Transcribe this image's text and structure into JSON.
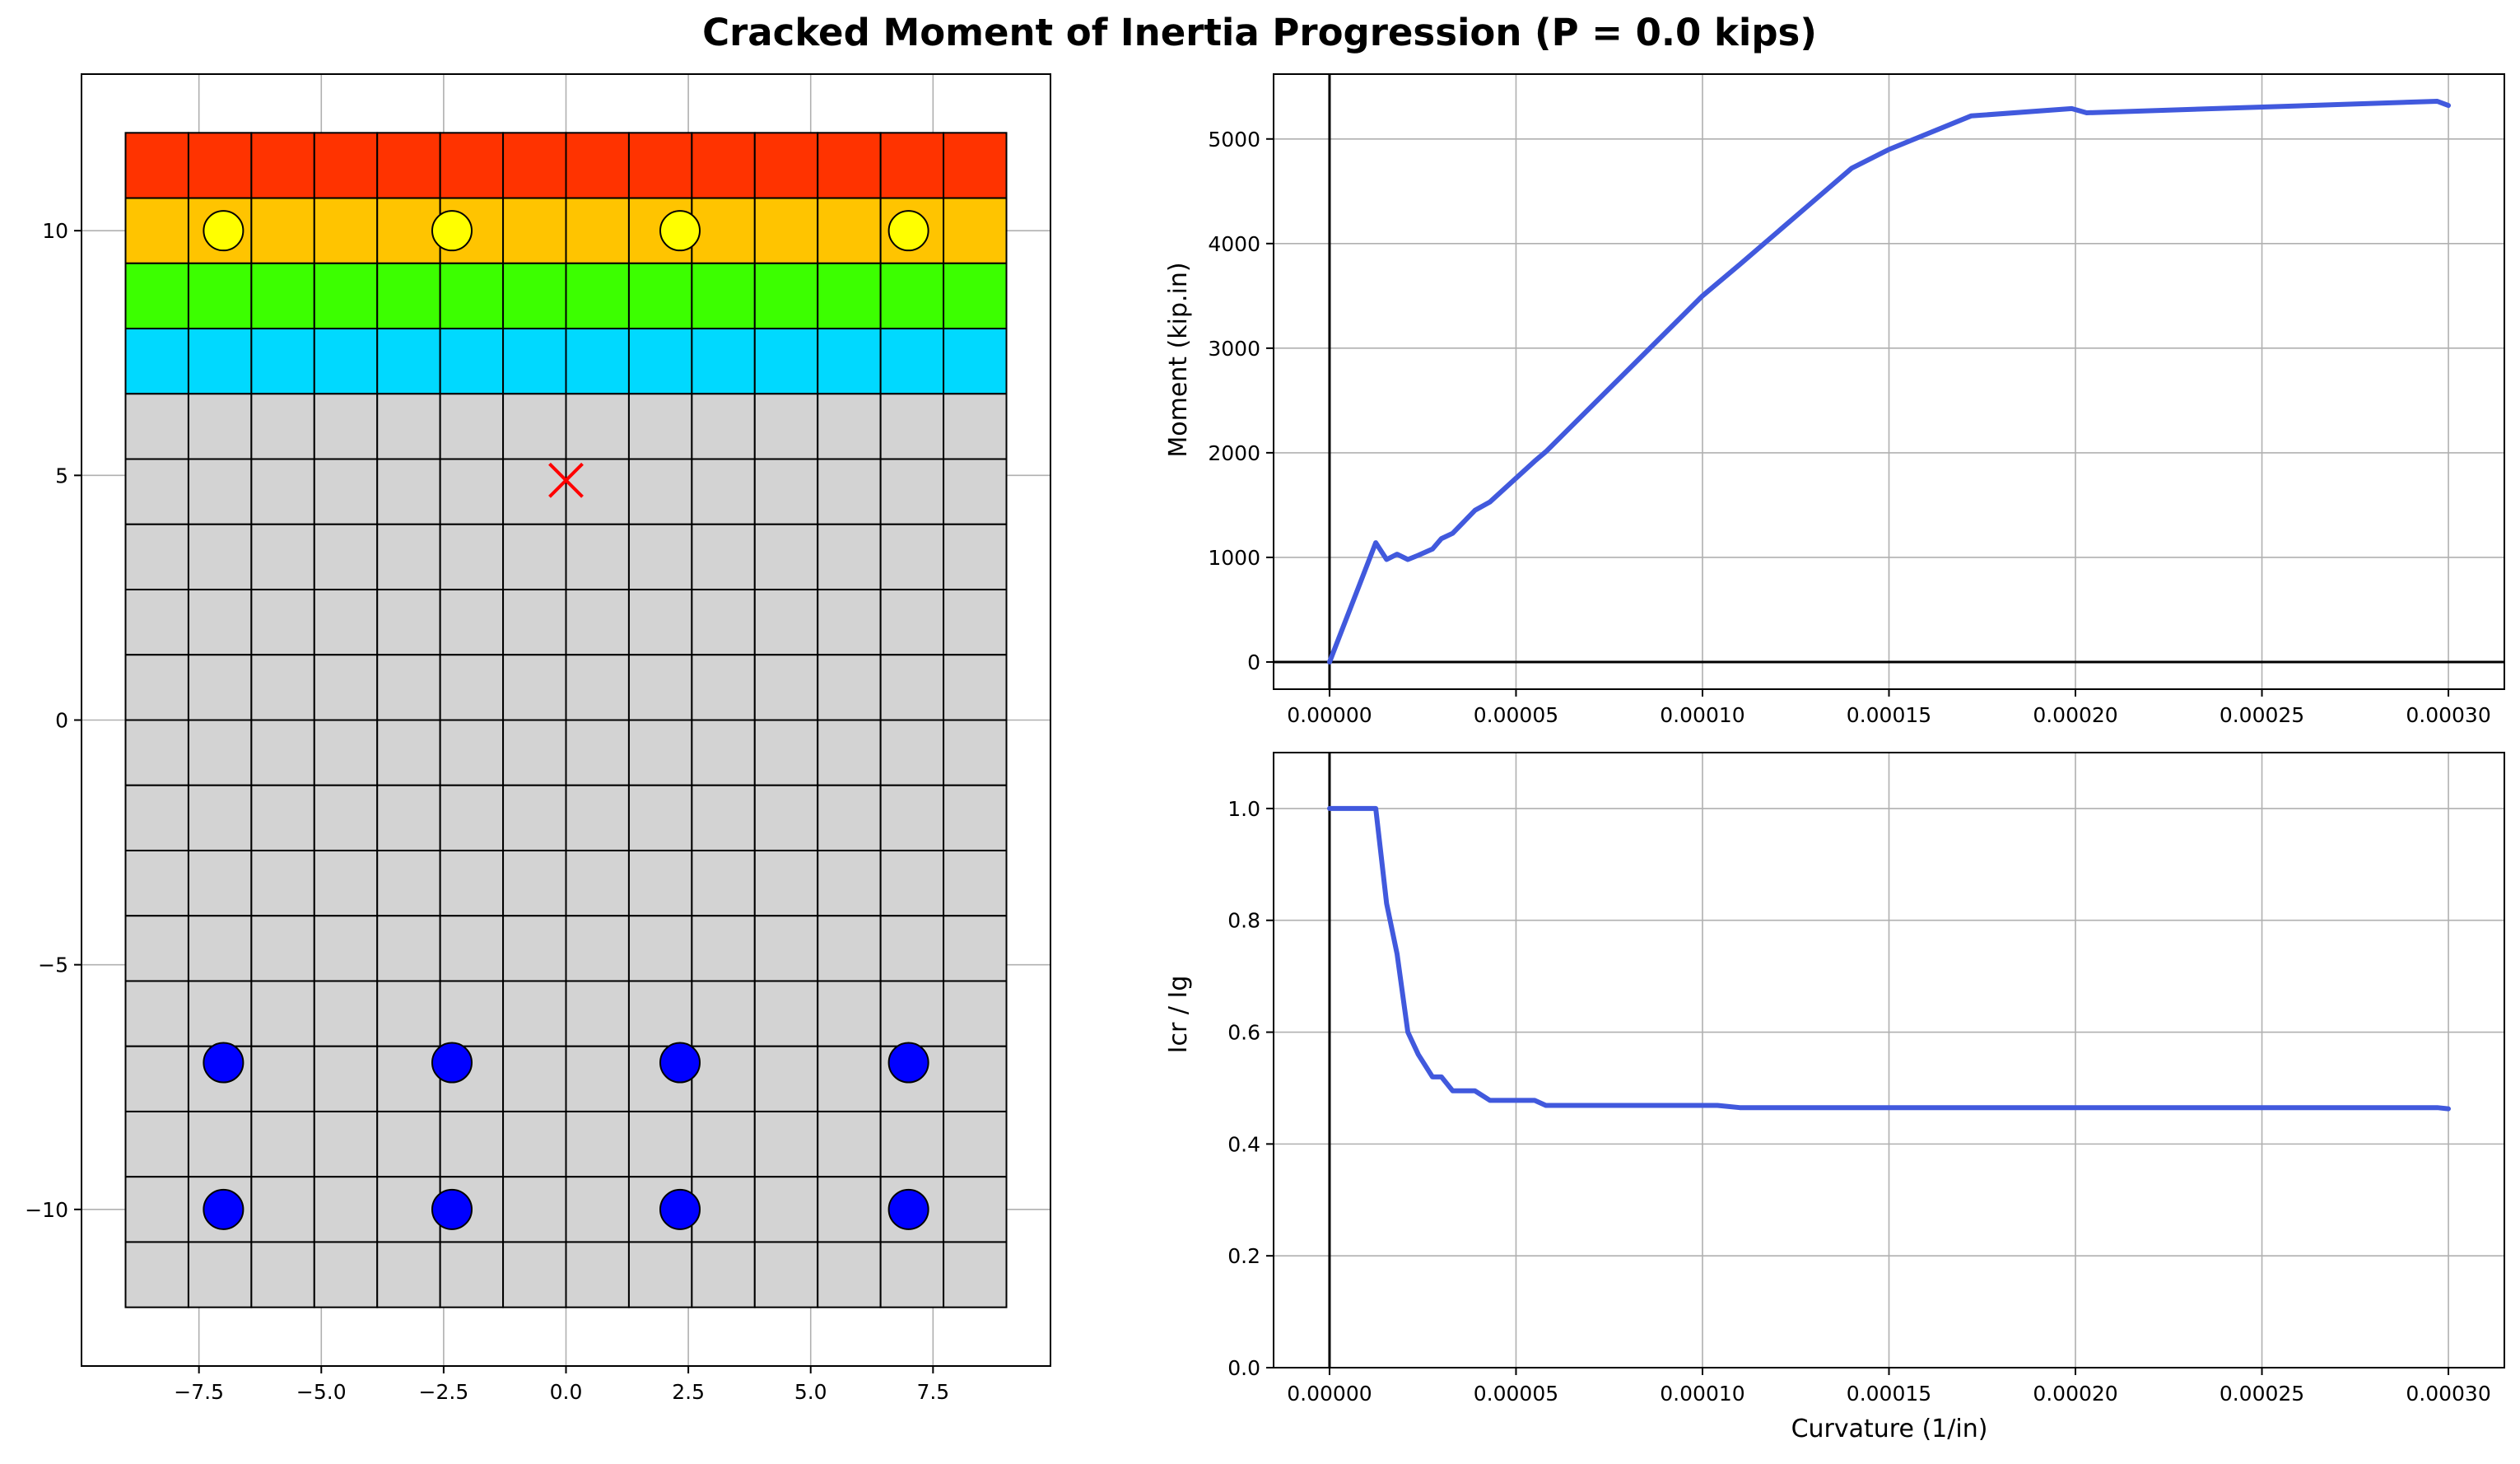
{
  "figure": {
    "title": "Cracked Moment of Inertia Progression (P = 0.0 kips)"
  },
  "colors": {
    "concrete": "#d3d3d3",
    "layer_red": "#ff3300",
    "layer_orange": "#ffc400",
    "layer_green": "#3cff00",
    "layer_cyan": "#00d9ff",
    "bar_compression": "#ffff00",
    "bar_tension": "#0000ff",
    "centroid_marker": "#ff0000",
    "curve": "#4159dd",
    "grid": "#b0b0b0"
  },
  "chart_data": [
    {
      "type": "scatter",
      "subtype": "section-fiber-mesh",
      "title": "",
      "xlabel": "",
      "ylabel": "",
      "xlim": [
        -9.9,
        9.9
      ],
      "ylim": [
        -13.2,
        13.2
      ],
      "xticks": [
        -7.5,
        -5.0,
        -2.5,
        0.0,
        2.5,
        5.0,
        7.5
      ],
      "xtick_labels": [
        "−7.5",
        "−5.0",
        "−2.5",
        "0.0",
        "2.5",
        "5.0",
        "7.5"
      ],
      "yticks": [
        -10,
        -5,
        0,
        5,
        10
      ],
      "ytick_labels": [
        "−10",
        "−5",
        "0",
        "5",
        "10"
      ],
      "grid": true,
      "section": {
        "x_range": [
          -9,
          9
        ],
        "y_range": [
          -12,
          12
        ],
        "columns": 14,
        "rows": 18,
        "top_row_colors": [
          "layer_red",
          "layer_orange",
          "layer_green",
          "layer_cyan"
        ],
        "default_color": "concrete"
      },
      "rebars": [
        {
          "x": -7.0,
          "y": 10,
          "state": "compression"
        },
        {
          "x": -2.33,
          "y": 10,
          "state": "compression"
        },
        {
          "x": 2.33,
          "y": 10,
          "state": "compression"
        },
        {
          "x": 7.0,
          "y": 10,
          "state": "compression"
        },
        {
          "x": -7.0,
          "y": -7,
          "state": "tension"
        },
        {
          "x": -2.33,
          "y": -7,
          "state": "tension"
        },
        {
          "x": 2.33,
          "y": -7,
          "state": "tension"
        },
        {
          "x": 7.0,
          "y": -7,
          "state": "tension"
        },
        {
          "x": -7.0,
          "y": -10,
          "state": "tension"
        },
        {
          "x": -2.33,
          "y": -10,
          "state": "tension"
        },
        {
          "x": 2.33,
          "y": -10,
          "state": "tension"
        },
        {
          "x": 7.0,
          "y": -10,
          "state": "tension"
        }
      ],
      "markers": [
        {
          "x": 0.0,
          "y": 4.9,
          "symbol": "x"
        }
      ]
    },
    {
      "type": "line",
      "title": "",
      "xlabel": "",
      "ylabel": "Moment (kip.in)",
      "xlim": [
        -1.5e-05,
        0.000315
      ],
      "ylim": [
        -260,
        5620
      ],
      "xticks": [
        0,
        5e-05,
        0.0001,
        0.00015,
        0.0002,
        0.00025,
        0.0003
      ],
      "xtick_labels": [
        "0.00000",
        "0.00005",
        "0.00010",
        "0.00015",
        "0.00020",
        "0.00025",
        "0.00030"
      ],
      "yticks": [
        0,
        1000,
        2000,
        3000,
        4000,
        5000
      ],
      "ytick_labels": [
        "0",
        "1000",
        "2000",
        "3000",
        "4000",
        "5000"
      ],
      "grid": true,
      "axhline": 0,
      "axvline": 0,
      "series": [
        {
          "x": [
            0,
            1.24e-05,
            1.53e-05,
            1.81e-05,
            2.1e-05,
            2.38e-05,
            2.76e-05,
            3e-05,
            3.3e-05,
            3.9e-05,
            4.3e-05,
            5.5e-05,
            5.8e-05,
            0.0001,
            0.000104,
            0.00011,
            0.00014,
            0.00015,
            0.000172,
            0.000199,
            0.000203,
            0.000297,
            0.0003
          ],
          "y": [
            0,
            1140,
            980,
            1030,
            980,
            1020,
            1080,
            1180,
            1230,
            1450,
            1530,
            1920,
            2010,
            3500,
            3620,
            3800,
            4720,
            4900,
            5220,
            5290,
            5250,
            5360,
            5320
          ]
        }
      ]
    },
    {
      "type": "line",
      "title": "",
      "xlabel": "Curvature (1/in)",
      "ylabel": "Icr / Ig",
      "xlim": [
        -1.5e-05,
        0.000315
      ],
      "ylim": [
        0.0,
        1.1
      ],
      "xticks": [
        0,
        5e-05,
        0.0001,
        0.00015,
        0.0002,
        0.00025,
        0.0003
      ],
      "xtick_labels": [
        "0.00000",
        "0.00005",
        "0.00010",
        "0.00015",
        "0.00020",
        "0.00025",
        "0.00030"
      ],
      "yticks": [
        0.0,
        0.2,
        0.4,
        0.6,
        0.8,
        1.0
      ],
      "ytick_labels": [
        "0.0",
        "0.2",
        "0.4",
        "0.6",
        "0.8",
        "1.0"
      ],
      "grid": true,
      "axvline": 0,
      "series": [
        {
          "x": [
            0,
            1.24e-05,
            1.53e-05,
            1.81e-05,
            2.1e-05,
            2.38e-05,
            2.76e-05,
            3e-05,
            3.3e-05,
            3.9e-05,
            4.3e-05,
            5.5e-05,
            5.8e-05,
            0.0001,
            0.000104,
            0.00011,
            0.00014,
            0.00015,
            0.000172,
            0.000199,
            0.000203,
            0.000297,
            0.0003
          ],
          "y": [
            1.0,
            1.0,
            0.83,
            0.74,
            0.6,
            0.56,
            0.52,
            0.52,
            0.495,
            0.495,
            0.478,
            0.478,
            0.469,
            0.469,
            0.469,
            0.465,
            0.465,
            0.465,
            0.465,
            0.465,
            0.465,
            0.465,
            0.463
          ]
        }
      ]
    }
  ]
}
